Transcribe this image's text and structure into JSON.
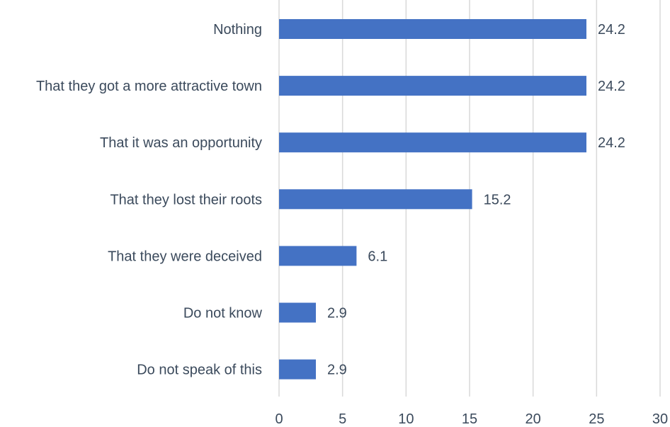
{
  "chart_data": {
    "type": "bar",
    "orientation": "horizontal",
    "categories": [
      "Nothing",
      "That they got a more attractive town",
      "That it was an opportunity",
      "That they lost their roots",
      "That they were deceived",
      "Do not know",
      "Do not speak of this"
    ],
    "values": [
      24.2,
      24.2,
      24.2,
      15.2,
      6.1,
      2.9,
      2.9
    ],
    "data_labels": [
      "24.2",
      "24.2",
      "24.2",
      "15.2",
      "6.1",
      "2.9",
      "2.9"
    ],
    "xlim": [
      0,
      30
    ],
    "x_ticks": [
      0,
      5,
      10,
      15,
      20,
      25,
      30
    ],
    "grid": "vertical",
    "bar_color": "#4472c4",
    "title": "",
    "xlabel": "",
    "ylabel": ""
  }
}
